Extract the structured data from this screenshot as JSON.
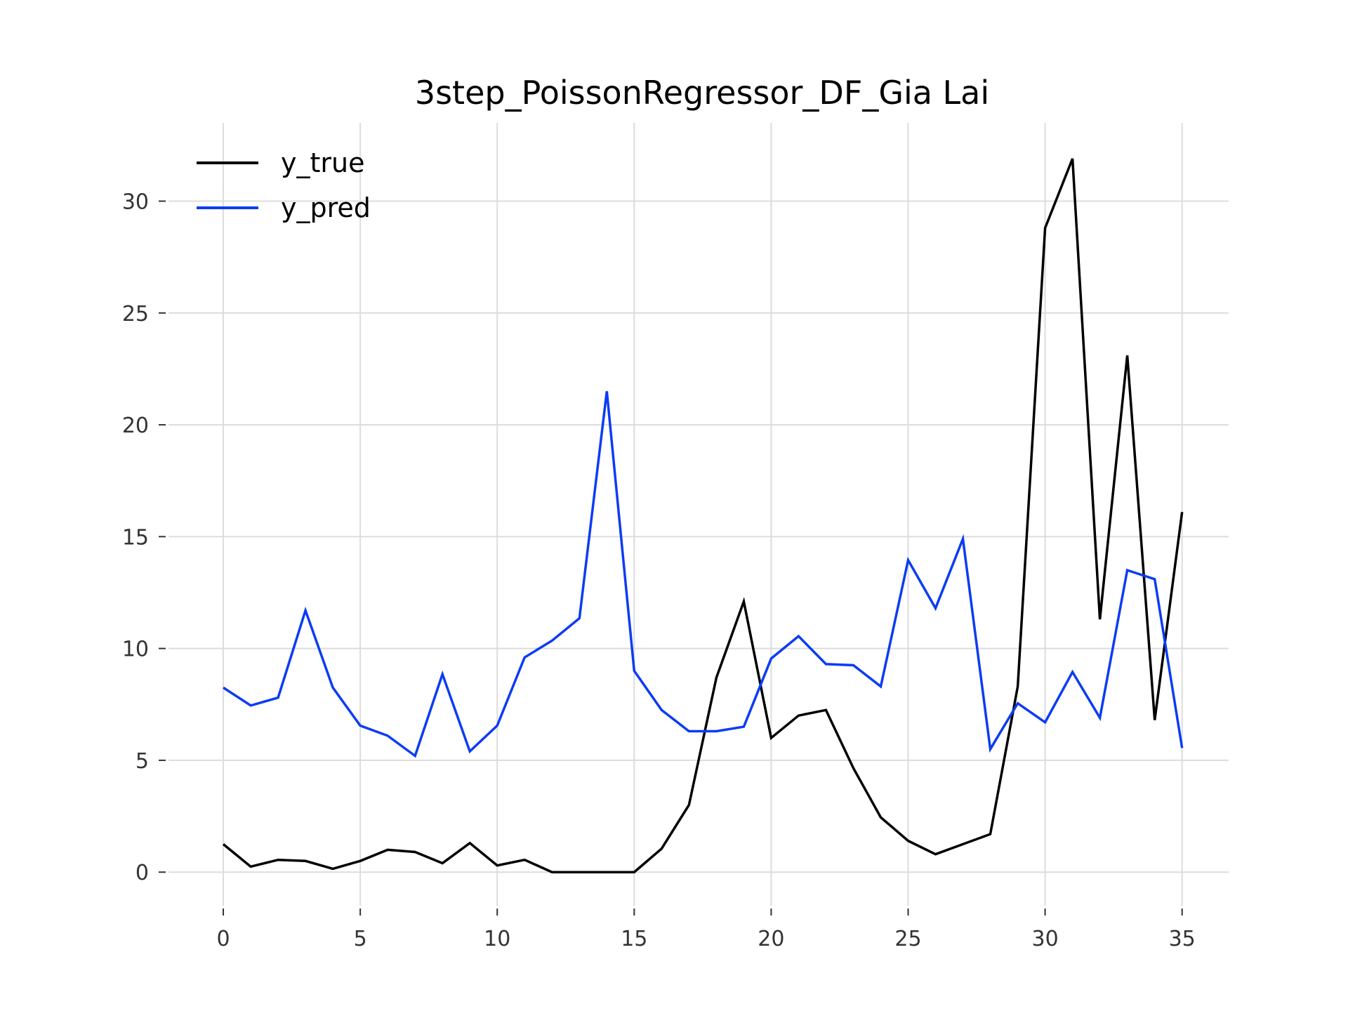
{
  "chart_data": {
    "type": "line",
    "title": "3step_PoissonRegressor_DF_Gia Lai",
    "xlabel": "",
    "ylabel": "",
    "xlim": [
      -2,
      36.7
    ],
    "ylim": [
      -1.5,
      33.5
    ],
    "xticks": [
      0,
      5,
      10,
      15,
      20,
      25,
      30,
      35
    ],
    "yticks": [
      0,
      5,
      10,
      15,
      20,
      25,
      30
    ],
    "grid": true,
    "legend_position": "top-left",
    "x": [
      0,
      1,
      2,
      3,
      4,
      5,
      6,
      7,
      8,
      9,
      10,
      11,
      12,
      13,
      14,
      15,
      16,
      17,
      18,
      19,
      20,
      21,
      22,
      23,
      24,
      25,
      26,
      27,
      28,
      29,
      30,
      31,
      32,
      33,
      34,
      35
    ],
    "series": [
      {
        "name": "y_true",
        "color": "#000000",
        "values": [
          1.25,
          0.25,
          0.55,
          0.5,
          0.15,
          0.5,
          1.0,
          0.9,
          0.4,
          1.3,
          0.3,
          0.55,
          0.0,
          0.0,
          0.0,
          0.0,
          1.05,
          3.0,
          8.7,
          12.1,
          6.0,
          7.0,
          7.25,
          4.65,
          2.45,
          1.4,
          0.8,
          1.25,
          1.7,
          8.3,
          28.8,
          31.9,
          11.3,
          23.1,
          6.8,
          16.1
        ]
      },
      {
        "name": "y_pred",
        "color": "#0b3cf5",
        "values": [
          8.25,
          7.45,
          7.8,
          11.7,
          8.25,
          6.55,
          6.1,
          5.2,
          8.85,
          5.4,
          6.55,
          9.6,
          10.35,
          11.35,
          21.5,
          9.0,
          7.25,
          6.3,
          6.3,
          6.5,
          9.55,
          10.55,
          9.3,
          9.25,
          8.3,
          13.95,
          11.8,
          14.9,
          5.5,
          7.55,
          6.7,
          8.95,
          6.9,
          13.5,
          13.1,
          5.55
        ]
      }
    ]
  }
}
